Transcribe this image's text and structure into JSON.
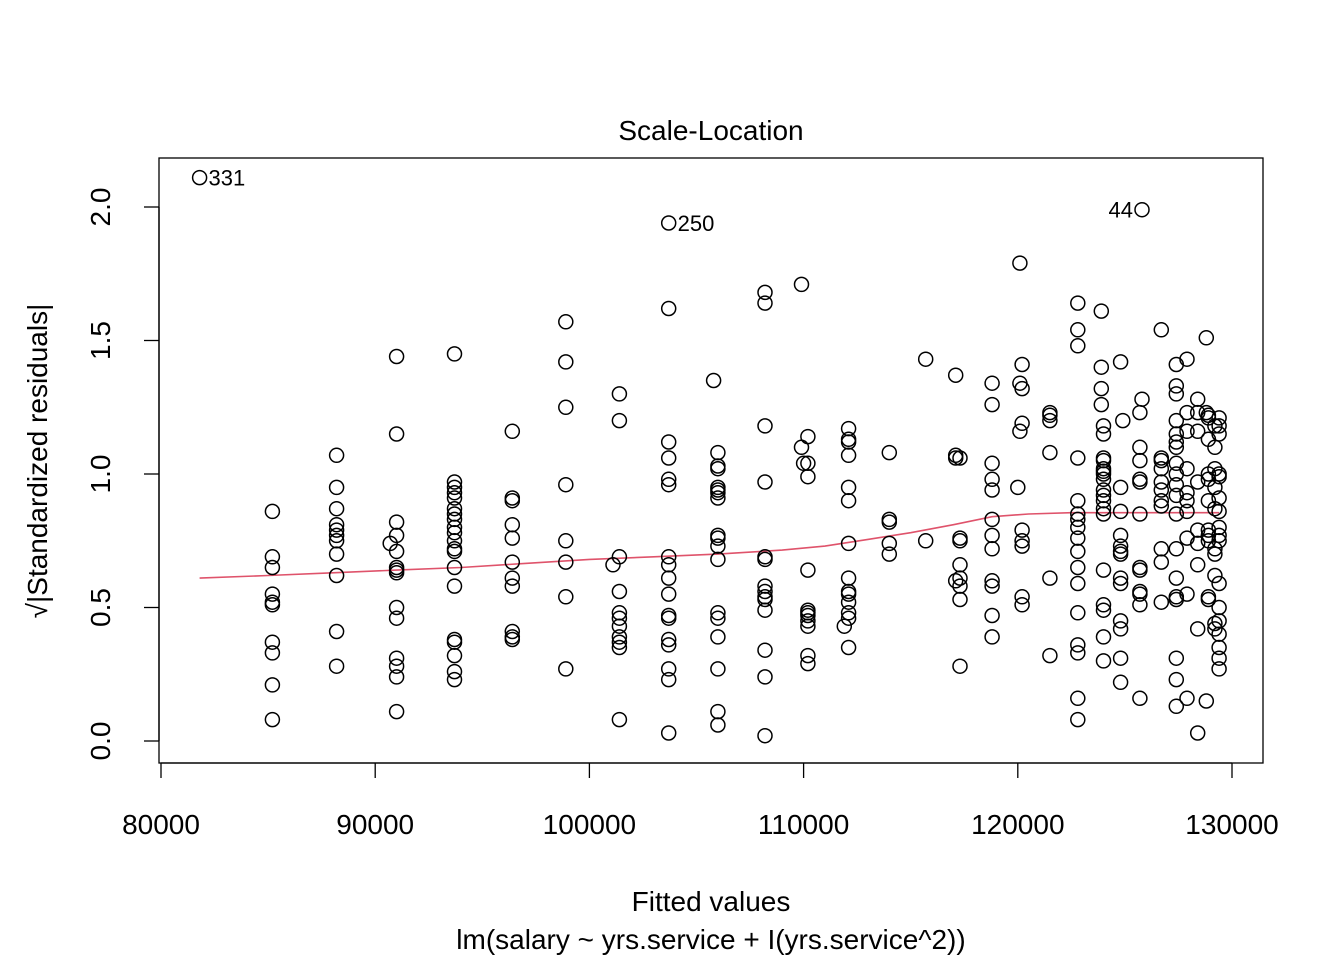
{
  "chart_data": {
    "type": "scatter",
    "title": "Scale-Location",
    "xlabel": "Fitted values",
    "subtitle": "lm(salary ~ yrs.service + I(yrs.service^2))",
    "ylabel": "√|Standardized residuals|",
    "xlim": [
      80000,
      130000
    ],
    "ylim": [
      0.0,
      2.0
    ],
    "x_ticks": [
      80000,
      90000,
      100000,
      110000,
      120000,
      130000
    ],
    "x_tick_labels": [
      "80000",
      "90000",
      "100000",
      "110000",
      "120000",
      "130000"
    ],
    "y_ticks": [
      0.0,
      0.5,
      1.0,
      1.5,
      2.0
    ],
    "y_tick_labels": [
      "0.0",
      "0.5",
      "1.0",
      "1.5",
      "2.0"
    ],
    "line_color": "#DF536B",
    "point_color": "#000000",
    "annotations": [
      {
        "label": "331",
        "x": 81800,
        "y": 2.11,
        "side": "right"
      },
      {
        "label": "250",
        "x": 103700,
        "y": 1.94,
        "side": "right"
      },
      {
        "label": "44",
        "x": 125800,
        "y": 1.99,
        "side": "left"
      }
    ],
    "points": [
      [
        81800,
        2.11
      ],
      [
        85200,
        0.86
      ],
      [
        85200,
        0.69
      ],
      [
        85200,
        0.65
      ],
      [
        85200,
        0.55
      ],
      [
        85200,
        0.52
      ],
      [
        85200,
        0.51
      ],
      [
        85200,
        0.37
      ],
      [
        85200,
        0.33
      ],
      [
        85200,
        0.21
      ],
      [
        85200,
        0.08
      ],
      [
        88200,
        1.07
      ],
      [
        88200,
        0.95
      ],
      [
        88200,
        0.87
      ],
      [
        88200,
        0.81
      ],
      [
        88200,
        0.79
      ],
      [
        88200,
        0.77
      ],
      [
        88200,
        0.75
      ],
      [
        88200,
        0.7
      ],
      [
        88200,
        0.62
      ],
      [
        88200,
        0.41
      ],
      [
        88200,
        0.28
      ],
      [
        90700,
        0.74
      ],
      [
        91000,
        1.44
      ],
      [
        91000,
        1.15
      ],
      [
        91000,
        0.82
      ],
      [
        91000,
        0.77
      ],
      [
        91000,
        0.71
      ],
      [
        91000,
        0.65
      ],
      [
        91000,
        0.63
      ],
      [
        91000,
        0.64
      ],
      [
        91000,
        0.5
      ],
      [
        91000,
        0.46
      ],
      [
        91000,
        0.31
      ],
      [
        91000,
        0.28
      ],
      [
        91000,
        0.24
      ],
      [
        91000,
        0.11
      ],
      [
        93700,
        1.45
      ],
      [
        93700,
        0.97
      ],
      [
        93700,
        0.95
      ],
      [
        93700,
        0.93
      ],
      [
        93700,
        0.91
      ],
      [
        93700,
        0.87
      ],
      [
        93700,
        0.85
      ],
      [
        93700,
        0.83
      ],
      [
        93700,
        0.8
      ],
      [
        93700,
        0.78
      ],
      [
        93700,
        0.75
      ],
      [
        93700,
        0.72
      ],
      [
        93700,
        0.71
      ],
      [
        93700,
        0.65
      ],
      [
        93700,
        0.58
      ],
      [
        93700,
        0.38
      ],
      [
        93700,
        0.37
      ],
      [
        93700,
        0.32
      ],
      [
        93700,
        0.26
      ],
      [
        93700,
        0.23
      ],
      [
        96400,
        1.16
      ],
      [
        96400,
        0.91
      ],
      [
        96400,
        0.9
      ],
      [
        96400,
        0.81
      ],
      [
        96400,
        0.76
      ],
      [
        96400,
        0.67
      ],
      [
        96400,
        0.61
      ],
      [
        96400,
        0.58
      ],
      [
        96400,
        0.41
      ],
      [
        96400,
        0.39
      ],
      [
        96400,
        0.38
      ],
      [
        98900,
        1.57
      ],
      [
        98900,
        1.42
      ],
      [
        98900,
        1.25
      ],
      [
        98900,
        0.96
      ],
      [
        98900,
        0.75
      ],
      [
        98900,
        0.67
      ],
      [
        98900,
        0.54
      ],
      [
        98900,
        0.27
      ],
      [
        101100,
        0.66
      ],
      [
        101400,
        1.3
      ],
      [
        101400,
        1.2
      ],
      [
        101400,
        0.69
      ],
      [
        101400,
        0.56
      ],
      [
        101400,
        0.48
      ],
      [
        101400,
        0.46
      ],
      [
        101400,
        0.43
      ],
      [
        101400,
        0.39
      ],
      [
        101400,
        0.37
      ],
      [
        101400,
        0.35
      ],
      [
        101400,
        0.08
      ],
      [
        103700,
        1.94
      ],
      [
        103700,
        1.62
      ],
      [
        103700,
        1.12
      ],
      [
        103700,
        1.06
      ],
      [
        103700,
        0.98
      ],
      [
        103700,
        0.96
      ],
      [
        103700,
        0.69
      ],
      [
        103700,
        0.66
      ],
      [
        103700,
        0.61
      ],
      [
        103700,
        0.55
      ],
      [
        103700,
        0.47
      ],
      [
        103700,
        0.46
      ],
      [
        103700,
        0.38
      ],
      [
        103700,
        0.36
      ],
      [
        103700,
        0.27
      ],
      [
        103700,
        0.23
      ],
      [
        103700,
        0.03
      ],
      [
        105800,
        1.35
      ],
      [
        106000,
        1.08
      ],
      [
        106000,
        1.03
      ],
      [
        106000,
        1.02
      ],
      [
        106000,
        0.95
      ],
      [
        106000,
        0.94
      ],
      [
        106000,
        0.93
      ],
      [
        106000,
        0.91
      ],
      [
        106000,
        0.77
      ],
      [
        106000,
        0.76
      ],
      [
        106000,
        0.73
      ],
      [
        106000,
        0.68
      ],
      [
        106000,
        0.48
      ],
      [
        106000,
        0.46
      ],
      [
        106000,
        0.39
      ],
      [
        106000,
        0.27
      ],
      [
        106000,
        0.11
      ],
      [
        106000,
        0.06
      ],
      [
        108200,
        1.68
      ],
      [
        108200,
        1.64
      ],
      [
        108200,
        1.18
      ],
      [
        108200,
        0.97
      ],
      [
        108200,
        0.69
      ],
      [
        108200,
        0.68
      ],
      [
        108200,
        0.58
      ],
      [
        108200,
        0.56
      ],
      [
        108200,
        0.54
      ],
      [
        108200,
        0.53
      ],
      [
        108200,
        0.49
      ],
      [
        108200,
        0.34
      ],
      [
        108200,
        0.24
      ],
      [
        108200,
        0.02
      ],
      [
        109900,
        1.71
      ],
      [
        109900,
        1.1
      ],
      [
        110000,
        1.04
      ],
      [
        110200,
        1.14
      ],
      [
        110200,
        1.04
      ],
      [
        110200,
        0.99
      ],
      [
        110200,
        0.64
      ],
      [
        110200,
        0.49
      ],
      [
        110200,
        0.48
      ],
      [
        110200,
        0.47
      ],
      [
        110200,
        0.45
      ],
      [
        110200,
        0.43
      ],
      [
        110200,
        0.32
      ],
      [
        110200,
        0.29
      ],
      [
        111900,
        0.43
      ],
      [
        112100,
        1.17
      ],
      [
        112100,
        1.13
      ],
      [
        112100,
        1.12
      ],
      [
        112100,
        1.07
      ],
      [
        112100,
        0.95
      ],
      [
        112100,
        0.9
      ],
      [
        112100,
        0.74
      ],
      [
        112100,
        0.61
      ],
      [
        112100,
        0.56
      ],
      [
        112100,
        0.55
      ],
      [
        112100,
        0.52
      ],
      [
        112100,
        0.48
      ],
      [
        112100,
        0.46
      ],
      [
        112100,
        0.35
      ],
      [
        114000,
        1.08
      ],
      [
        114000,
        0.83
      ],
      [
        114000,
        0.82
      ],
      [
        114000,
        0.74
      ],
      [
        114000,
        0.7
      ],
      [
        115700,
        1.43
      ],
      [
        115700,
        0.75
      ],
      [
        117100,
        1.37
      ],
      [
        117100,
        1.07
      ],
      [
        117100,
        1.06
      ],
      [
        117300,
        1.06
      ],
      [
        117300,
        0.76
      ],
      [
        117300,
        0.75
      ],
      [
        117300,
        0.66
      ],
      [
        117300,
        0.61
      ],
      [
        117300,
        0.58
      ],
      [
        117300,
        0.53
      ],
      [
        117300,
        0.28
      ],
      [
        117100,
        0.6
      ],
      [
        118800,
        1.34
      ],
      [
        118800,
        1.26
      ],
      [
        118800,
        1.04
      ],
      [
        118800,
        0.98
      ],
      [
        118800,
        0.94
      ],
      [
        118800,
        0.83
      ],
      [
        118800,
        0.77
      ],
      [
        118800,
        0.72
      ],
      [
        118800,
        0.6
      ],
      [
        118800,
        0.58
      ],
      [
        118800,
        0.47
      ],
      [
        118800,
        0.39
      ],
      [
        120100,
        1.79
      ],
      [
        120100,
        1.34
      ],
      [
        120200,
        1.41
      ],
      [
        120200,
        1.32
      ],
      [
        120200,
        1.19
      ],
      [
        120100,
        1.16
      ],
      [
        120000,
        0.95
      ],
      [
        120200,
        0.79
      ],
      [
        120200,
        0.75
      ],
      [
        120200,
        0.73
      ],
      [
        120200,
        0.54
      ],
      [
        120200,
        0.51
      ],
      [
        121500,
        1.23
      ],
      [
        121500,
        1.22
      ],
      [
        121500,
        1.2
      ],
      [
        121500,
        1.08
      ],
      [
        121500,
        0.61
      ],
      [
        121500,
        0.32
      ],
      [
        122800,
        1.64
      ],
      [
        122800,
        1.54
      ],
      [
        122800,
        1.48
      ],
      [
        122800,
        1.06
      ],
      [
        122800,
        0.9
      ],
      [
        122800,
        0.85
      ],
      [
        122800,
        0.83
      ],
      [
        122800,
        0.8
      ],
      [
        122800,
        0.76
      ],
      [
        122800,
        0.71
      ],
      [
        122800,
        0.65
      ],
      [
        122800,
        0.59
      ],
      [
        122800,
        0.48
      ],
      [
        122800,
        0.36
      ],
      [
        122800,
        0.33
      ],
      [
        122800,
        0.16
      ],
      [
        122800,
        0.08
      ],
      [
        123900,
        1.61
      ],
      [
        123900,
        1.4
      ],
      [
        123900,
        1.32
      ],
      [
        123900,
        1.26
      ],
      [
        124000,
        1.18
      ],
      [
        124000,
        1.15
      ],
      [
        124000,
        1.06
      ],
      [
        124000,
        1.05
      ],
      [
        124000,
        1.02
      ],
      [
        124000,
        1.01
      ],
      [
        124000,
        1.0
      ],
      [
        124000,
        0.98
      ],
      [
        124000,
        0.94
      ],
      [
        124000,
        0.92
      ],
      [
        124000,
        0.9
      ],
      [
        124000,
        0.87
      ],
      [
        124000,
        0.85
      ],
      [
        124000,
        0.64
      ],
      [
        124000,
        0.51
      ],
      [
        124000,
        0.49
      ],
      [
        124000,
        0.39
      ],
      [
        124000,
        0.3
      ],
      [
        124800,
        1.42
      ],
      [
        124900,
        1.2
      ],
      [
        124800,
        0.95
      ],
      [
        124800,
        0.86
      ],
      [
        124800,
        0.77
      ],
      [
        124800,
        0.73
      ],
      [
        124800,
        0.71
      ],
      [
        124800,
        0.7
      ],
      [
        124800,
        0.61
      ],
      [
        124800,
        0.59
      ],
      [
        124800,
        0.45
      ],
      [
        124800,
        0.42
      ],
      [
        124800,
        0.31
      ],
      [
        124800,
        0.22
      ],
      [
        125800,
        1.99
      ],
      [
        125800,
        1.28
      ],
      [
        125700,
        1.23
      ],
      [
        125700,
        1.1
      ],
      [
        125700,
        1.05
      ],
      [
        125700,
        0.98
      ],
      [
        125700,
        0.97
      ],
      [
        125700,
        0.85
      ],
      [
        125700,
        0.65
      ],
      [
        125700,
        0.64
      ],
      [
        125700,
        0.56
      ],
      [
        125700,
        0.55
      ],
      [
        125700,
        0.51
      ],
      [
        125700,
        0.16
      ],
      [
        126700,
        1.54
      ],
      [
        126700,
        1.06
      ],
      [
        126700,
        1.05
      ],
      [
        126700,
        1.02
      ],
      [
        126700,
        0.97
      ],
      [
        126700,
        0.94
      ],
      [
        126700,
        0.9
      ],
      [
        126700,
        0.88
      ],
      [
        126700,
        0.72
      ],
      [
        126700,
        0.67
      ],
      [
        126700,
        0.52
      ],
      [
        127400,
        1.41
      ],
      [
        127400,
        1.33
      ],
      [
        127400,
        1.3
      ],
      [
        127400,
        1.2
      ],
      [
        127400,
        1.15
      ],
      [
        127400,
        1.12
      ],
      [
        127400,
        1.1
      ],
      [
        127400,
        1.04
      ],
      [
        127400,
        1.0
      ],
      [
        127400,
        0.96
      ],
      [
        127400,
        0.92
      ],
      [
        127400,
        0.85
      ],
      [
        127400,
        0.72
      ],
      [
        127400,
        0.61
      ],
      [
        127400,
        0.54
      ],
      [
        127400,
        0.53
      ],
      [
        127400,
        0.31
      ],
      [
        127400,
        0.23
      ],
      [
        127400,
        0.13
      ],
      [
        127900,
        1.43
      ],
      [
        127900,
        1.23
      ],
      [
        127900,
        1.16
      ],
      [
        127900,
        1.02
      ],
      [
        127900,
        0.93
      ],
      [
        127900,
        0.9
      ],
      [
        127900,
        0.86
      ],
      [
        127900,
        0.76
      ],
      [
        127900,
        0.55
      ],
      [
        127900,
        0.16
      ],
      [
        128400,
        1.28
      ],
      [
        128400,
        1.23
      ],
      [
        128400,
        1.16
      ],
      [
        128400,
        0.97
      ],
      [
        128400,
        0.79
      ],
      [
        128400,
        0.74
      ],
      [
        128400,
        0.66
      ],
      [
        128400,
        0.42
      ],
      [
        128400,
        0.03
      ],
      [
        128800,
        1.51
      ],
      [
        128800,
        1.23
      ],
      [
        128900,
        1.22
      ],
      [
        128900,
        1.21
      ],
      [
        128900,
        1.13
      ],
      [
        128900,
        1.0
      ],
      [
        128900,
        0.98
      ],
      [
        128900,
        0.9
      ],
      [
        128900,
        0.79
      ],
      [
        128900,
        0.77
      ],
      [
        128900,
        0.75
      ],
      [
        128900,
        0.54
      ],
      [
        128900,
        0.53
      ],
      [
        128800,
        0.15
      ],
      [
        129200,
        1.18
      ],
      [
        129200,
        1.1
      ],
      [
        129200,
        1.02
      ],
      [
        129200,
        0.95
      ],
      [
        129200,
        0.87
      ],
      [
        129200,
        0.72
      ],
      [
        129200,
        0.7
      ],
      [
        129200,
        0.62
      ],
      [
        129200,
        0.44
      ],
      [
        129200,
        0.42
      ],
      [
        129400,
        1.21
      ],
      [
        129400,
        1.18
      ],
      [
        129400,
        1.15
      ],
      [
        129400,
        1.0
      ],
      [
        129400,
        0.99
      ],
      [
        129400,
        0.91
      ],
      [
        129400,
        0.86
      ],
      [
        129400,
        0.8
      ],
      [
        129400,
        0.77
      ],
      [
        129400,
        0.75
      ],
      [
        129400,
        0.59
      ],
      [
        129400,
        0.5
      ],
      [
        129400,
        0.45
      ],
      [
        129400,
        0.4
      ],
      [
        129400,
        0.35
      ],
      [
        129400,
        0.31
      ],
      [
        129400,
        0.27
      ]
    ],
    "smooth_line": [
      [
        81800,
        0.61
      ],
      [
        85000,
        0.62
      ],
      [
        88000,
        0.63
      ],
      [
        91000,
        0.64
      ],
      [
        94000,
        0.65
      ],
      [
        97000,
        0.665
      ],
      [
        100000,
        0.68
      ],
      [
        103000,
        0.69
      ],
      [
        106000,
        0.7
      ],
      [
        109000,
        0.715
      ],
      [
        111000,
        0.73
      ],
      [
        113000,
        0.755
      ],
      [
        115000,
        0.78
      ],
      [
        117000,
        0.81
      ],
      [
        118800,
        0.84
      ],
      [
        120500,
        0.85
      ],
      [
        122500,
        0.855
      ],
      [
        124000,
        0.855
      ],
      [
        126000,
        0.855
      ],
      [
        128000,
        0.855
      ],
      [
        129400,
        0.855
      ]
    ]
  }
}
